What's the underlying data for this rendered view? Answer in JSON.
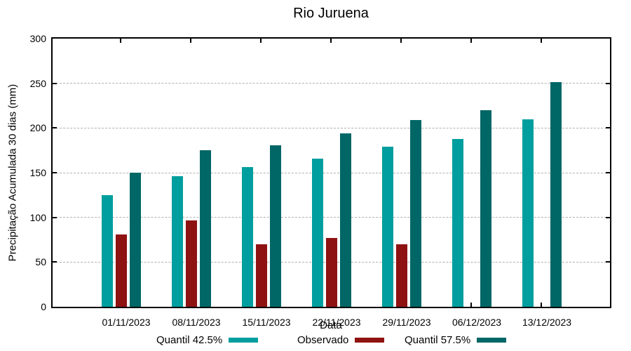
{
  "chart_data": {
    "type": "bar",
    "title": "Rio Juruena",
    "xlabel": "Data",
    "ylabel": "Precipitação Acumulada 30 dias (mm)",
    "ylim": [
      0,
      300
    ],
    "ytick_step": 50,
    "ytick_labels": [
      "0",
      "50",
      "100",
      "150",
      "200",
      "250",
      "300"
    ],
    "grid": "horizontal-dashed",
    "grid_color": "#b0b0b0",
    "background_color": "#ffffff",
    "text_color": "#000000",
    "legend_position": "bottom-center",
    "categories": [
      "01/11/2023",
      "08/11/2023",
      "15/11/2023",
      "22/11/2023",
      "29/11/2023",
      "06/12/2023",
      "13/12/2023"
    ],
    "series": [
      {
        "name": "Quantil 42.5%",
        "color": "#009e9e",
        "values": [
          125,
          146,
          156,
          166,
          179,
          188,
          210
        ]
      },
      {
        "name": "Observado",
        "color": "#8e1212",
        "values": [
          81,
          97,
          70,
          77,
          70,
          null,
          null
        ]
      },
      {
        "name": "Quantil 57.5%",
        "color": "#006666",
        "values": [
          150,
          175,
          181,
          194,
          209,
          220,
          251
        ]
      }
    ]
  }
}
